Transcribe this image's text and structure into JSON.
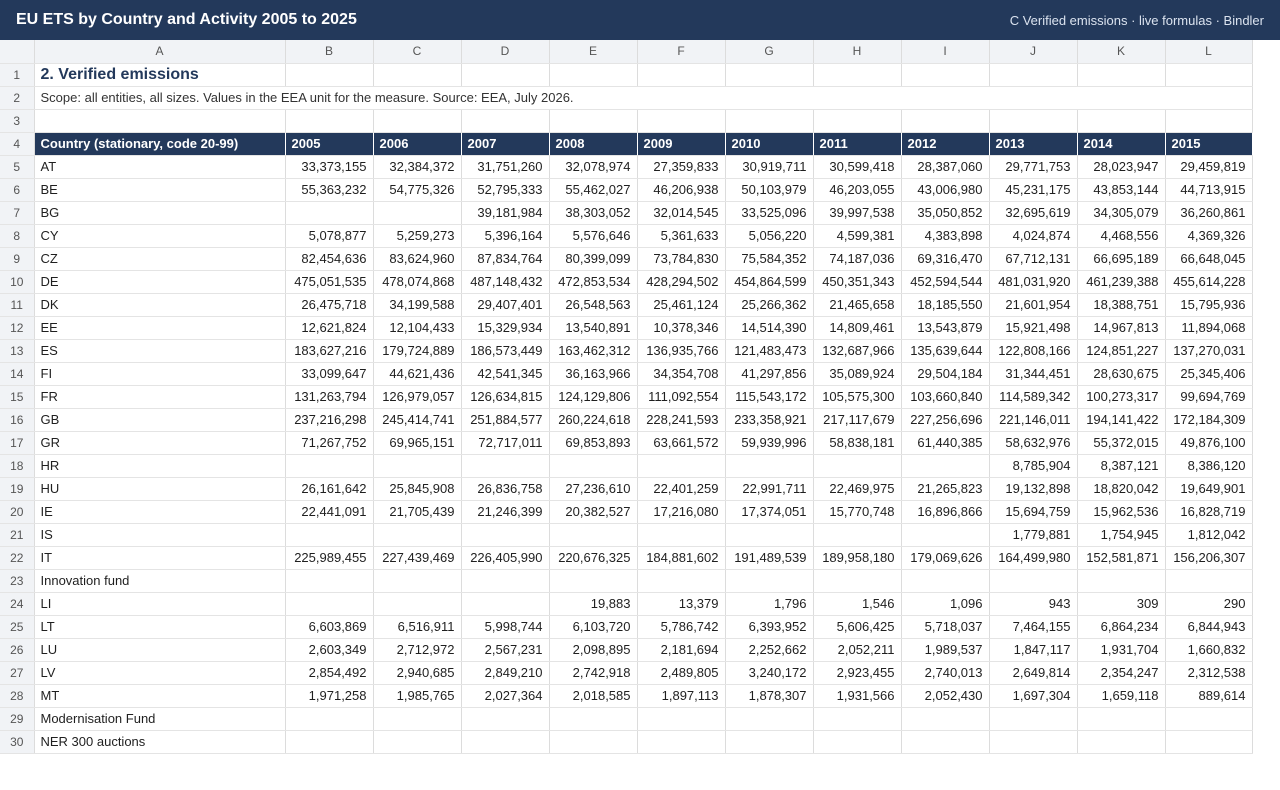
{
  "app": {
    "title": "EU ETS by Country and Activity 2005 to 2025",
    "subtitle": "C Verified emissions · live formulas · Bindler"
  },
  "columns": [
    "A",
    "B",
    "C",
    "D",
    "E",
    "F",
    "G",
    "H",
    "I",
    "J",
    "K",
    "L"
  ],
  "sheet": {
    "title": "2. Verified emissions",
    "scope": "Scope: all entities, all sizes. Values in the EEA unit for the measure. Source: EEA, July 2026.",
    "header": [
      "Country (stationary, code 20-99)",
      "2005",
      "2006",
      "2007",
      "2008",
      "2009",
      "2010",
      "2011",
      "2012",
      "2013",
      "2014",
      "2015"
    ],
    "rows": [
      {
        "n": "5",
        "c": [
          "AT",
          "33,373,155",
          "32,384,372",
          "31,751,260",
          "32,078,974",
          "27,359,833",
          "30,919,711",
          "30,599,418",
          "28,387,060",
          "29,771,753",
          "28,023,947",
          "29,459,819"
        ]
      },
      {
        "n": "6",
        "c": [
          "BE",
          "55,363,232",
          "54,775,326",
          "52,795,333",
          "55,462,027",
          "46,206,938",
          "50,103,979",
          "46,203,055",
          "43,006,980",
          "45,231,175",
          "43,853,144",
          "44,713,915"
        ]
      },
      {
        "n": "7",
        "c": [
          "BG",
          "",
          "",
          "39,181,984",
          "38,303,052",
          "32,014,545",
          "33,525,096",
          "39,997,538",
          "35,050,852",
          "32,695,619",
          "34,305,079",
          "36,260,861"
        ]
      },
      {
        "n": "8",
        "c": [
          "CY",
          "5,078,877",
          "5,259,273",
          "5,396,164",
          "5,576,646",
          "5,361,633",
          "5,056,220",
          "4,599,381",
          "4,383,898",
          "4,024,874",
          "4,468,556",
          "4,369,326"
        ]
      },
      {
        "n": "9",
        "c": [
          "CZ",
          "82,454,636",
          "83,624,960",
          "87,834,764",
          "80,399,099",
          "73,784,830",
          "75,584,352",
          "74,187,036",
          "69,316,470",
          "67,712,131",
          "66,695,189",
          "66,648,045"
        ]
      },
      {
        "n": "10",
        "c": [
          "DE",
          "475,051,535",
          "478,074,868",
          "487,148,432",
          "472,853,534",
          "428,294,502",
          "454,864,599",
          "450,351,343",
          "452,594,544",
          "481,031,920",
          "461,239,388",
          "455,614,228"
        ]
      },
      {
        "n": "11",
        "c": [
          "DK",
          "26,475,718",
          "34,199,588",
          "29,407,401",
          "26,548,563",
          "25,461,124",
          "25,266,362",
          "21,465,658",
          "18,185,550",
          "21,601,954",
          "18,388,751",
          "15,795,936"
        ]
      },
      {
        "n": "12",
        "c": [
          "EE",
          "12,621,824",
          "12,104,433",
          "15,329,934",
          "13,540,891",
          "10,378,346",
          "14,514,390",
          "14,809,461",
          "13,543,879",
          "15,921,498",
          "14,967,813",
          "11,894,068"
        ]
      },
      {
        "n": "13",
        "c": [
          "ES",
          "183,627,216",
          "179,724,889",
          "186,573,449",
          "163,462,312",
          "136,935,766",
          "121,483,473",
          "132,687,966",
          "135,639,644",
          "122,808,166",
          "124,851,227",
          "137,270,031"
        ]
      },
      {
        "n": "14",
        "c": [
          "FI",
          "33,099,647",
          "44,621,436",
          "42,541,345",
          "36,163,966",
          "34,354,708",
          "41,297,856",
          "35,089,924",
          "29,504,184",
          "31,344,451",
          "28,630,675",
          "25,345,406"
        ]
      },
      {
        "n": "15",
        "c": [
          "FR",
          "131,263,794",
          "126,979,057",
          "126,634,815",
          "124,129,806",
          "111,092,554",
          "115,543,172",
          "105,575,300",
          "103,660,840",
          "114,589,342",
          "100,273,317",
          "99,694,769"
        ]
      },
      {
        "n": "16",
        "c": [
          "GB",
          "237,216,298",
          "245,414,741",
          "251,884,577",
          "260,224,618",
          "228,241,593",
          "233,358,921",
          "217,117,679",
          "227,256,696",
          "221,146,011",
          "194,141,422",
          "172,184,309"
        ]
      },
      {
        "n": "17",
        "c": [
          "GR",
          "71,267,752",
          "69,965,151",
          "72,717,011",
          "69,853,893",
          "63,661,572",
          "59,939,996",
          "58,838,181",
          "61,440,385",
          "58,632,976",
          "55,372,015",
          "49,876,100"
        ]
      },
      {
        "n": "18",
        "c": [
          "HR",
          "",
          "",
          "",
          "",
          "",
          "",
          "",
          "",
          "8,785,904",
          "8,387,121",
          "8,386,120"
        ]
      },
      {
        "n": "19",
        "c": [
          "HU",
          "26,161,642",
          "25,845,908",
          "26,836,758",
          "27,236,610",
          "22,401,259",
          "22,991,711",
          "22,469,975",
          "21,265,823",
          "19,132,898",
          "18,820,042",
          "19,649,901"
        ]
      },
      {
        "n": "20",
        "c": [
          "IE",
          "22,441,091",
          "21,705,439",
          "21,246,399",
          "20,382,527",
          "17,216,080",
          "17,374,051",
          "15,770,748",
          "16,896,866",
          "15,694,759",
          "15,962,536",
          "16,828,719"
        ]
      },
      {
        "n": "21",
        "c": [
          "IS",
          "",
          "",
          "",
          "",
          "",
          "",
          "",
          "",
          "1,779,881",
          "1,754,945",
          "1,812,042"
        ]
      },
      {
        "n": "22",
        "c": [
          "IT",
          "225,989,455",
          "227,439,469",
          "226,405,990",
          "220,676,325",
          "184,881,602",
          "191,489,539",
          "189,958,180",
          "179,069,626",
          "164,499,980",
          "152,581,871",
          "156,206,307"
        ]
      },
      {
        "n": "23",
        "c": [
          "Innovation fund",
          "",
          "",
          "",
          "",
          "",
          "",
          "",
          "",
          "",
          "",
          ""
        ]
      },
      {
        "n": "24",
        "c": [
          "LI",
          "",
          "",
          "",
          "19,883",
          "13,379",
          "1,796",
          "1,546",
          "1,096",
          "943",
          "309",
          "290"
        ]
      },
      {
        "n": "25",
        "c": [
          "LT",
          "6,603,869",
          "6,516,911",
          "5,998,744",
          "6,103,720",
          "5,786,742",
          "6,393,952",
          "5,606,425",
          "5,718,037",
          "7,464,155",
          "6,864,234",
          "6,844,943"
        ]
      },
      {
        "n": "26",
        "c": [
          "LU",
          "2,603,349",
          "2,712,972",
          "2,567,231",
          "2,098,895",
          "2,181,694",
          "2,252,662",
          "2,052,211",
          "1,989,537",
          "1,847,117",
          "1,931,704",
          "1,660,832"
        ]
      },
      {
        "n": "27",
        "c": [
          "LV",
          "2,854,492",
          "2,940,685",
          "2,849,210",
          "2,742,918",
          "2,489,805",
          "3,240,172",
          "2,923,455",
          "2,740,013",
          "2,649,814",
          "2,354,247",
          "2,312,538"
        ]
      },
      {
        "n": "28",
        "c": [
          "MT",
          "1,971,258",
          "1,985,765",
          "2,027,364",
          "2,018,585",
          "1,897,113",
          "1,878,307",
          "1,931,566",
          "2,052,430",
          "1,697,304",
          "1,659,118",
          "889,614"
        ]
      },
      {
        "n": "29",
        "c": [
          "Modernisation Fund",
          "",
          "",
          "",
          "",
          "",
          "",
          "",
          "",
          "",
          "",
          ""
        ]
      },
      {
        "n": "30",
        "c": [
          "NER 300 auctions",
          "",
          "",
          "",
          "",
          "",
          "",
          "",
          "",
          "",
          "",
          ""
        ]
      }
    ]
  }
}
